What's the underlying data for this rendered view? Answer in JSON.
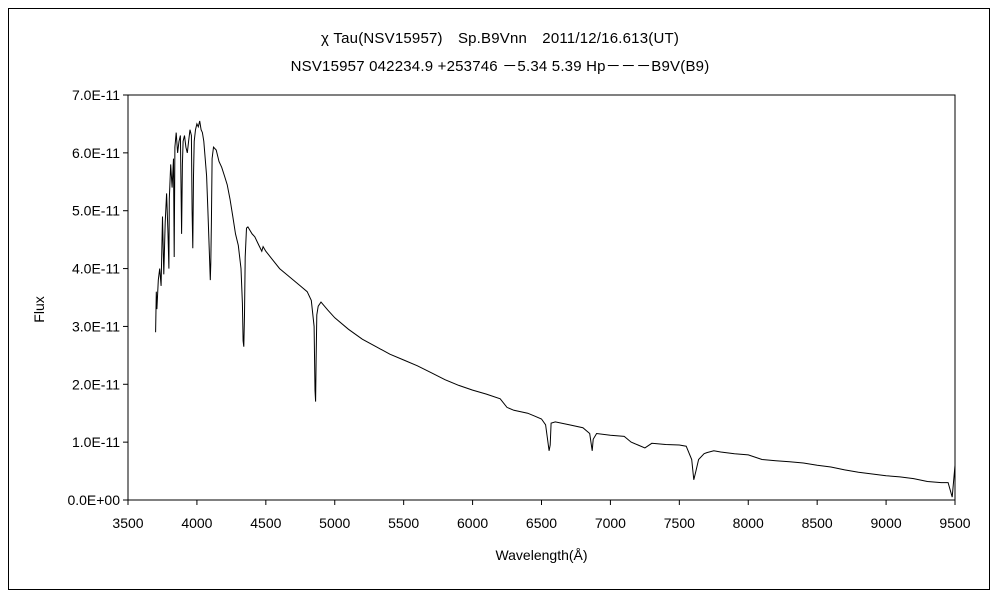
{
  "chart_data": {
    "type": "line",
    "title": "χ Tau(NSV15957)　Sp.B9Vnn　2011/12/16.613(UT)",
    "subtitle": "NSV15957 042234.9 +253746 －5.34 5.39 Hp－－－B9V(B9)",
    "xlabel": "Wavelength(Å)",
    "ylabel": "Flux",
    "xlim": [
      3500,
      9500
    ],
    "ylim": [
      0,
      7e-11
    ],
    "grid": false,
    "legend": "none",
    "x_ticks": [
      "3500",
      "4000",
      "4500",
      "5000",
      "5500",
      "6000",
      "6500",
      "7000",
      "7500",
      "8000",
      "8500",
      "9000",
      "9500"
    ],
    "y_ticks": [
      "0.0E+00",
      "1.0E-11",
      "2.0E-11",
      "3.0E-11",
      "4.0E-11",
      "5.0E-11",
      "6.0E-11",
      "7.0E-11"
    ],
    "series": [
      {
        "color": "#000000",
        "x": [
          3700,
          3705,
          3710,
          3720,
          3730,
          3740,
          3750,
          3760,
          3770,
          3780,
          3790,
          3797,
          3800,
          3810,
          3820,
          3830,
          3835,
          3840,
          3850,
          3860,
          3870,
          3880,
          3889,
          3895,
          3900,
          3910,
          3920,
          3930,
          3940,
          3950,
          3960,
          3965,
          3970,
          3975,
          3980,
          3990,
          4000,
          4010,
          4020,
          4030,
          4040,
          4050,
          4060,
          4070,
          4080,
          4090,
          4097,
          4101,
          4105,
          4110,
          4120,
          4140,
          4160,
          4180,
          4200,
          4220,
          4240,
          4260,
          4280,
          4300,
          4320,
          4330,
          4335,
          4340,
          4345,
          4350,
          4360,
          4370,
          4380,
          4400,
          4420,
          4450,
          4471,
          4480,
          4500,
          4550,
          4600,
          4650,
          4700,
          4750,
          4800,
          4830,
          4850,
          4857,
          4861,
          4865,
          4870,
          4880,
          4900,
          4950,
          5000,
          5100,
          5200,
          5300,
          5400,
          5500,
          5600,
          5700,
          5800,
          5900,
          6000,
          6100,
          6200,
          6250,
          6300,
          6400,
          6450,
          6500,
          6530,
          6555,
          6563,
          6570,
          6600,
          6700,
          6800,
          6850,
          6868,
          6875,
          6900,
          7000,
          7100,
          7150,
          7200,
          7250,
          7300,
          7400,
          7500,
          7550,
          7590,
          7605,
          7620,
          7640,
          7680,
          7700,
          7750,
          7800,
          7900,
          8000,
          8100,
          8200,
          8300,
          8400,
          8500,
          8600,
          8700,
          8800,
          8900,
          9000,
          9100,
          9200,
          9300,
          9400,
          9450,
          9480,
          9500
        ],
        "values": [
          2.9e-11,
          3.6e-11,
          3.3e-11,
          3.8e-11,
          4e-11,
          3.7e-11,
          4.9e-11,
          3.9e-11,
          4.8e-11,
          5.3e-11,
          4.6e-11,
          4e-11,
          5.2e-11,
          5.8e-11,
          5.4e-11,
          5.9e-11,
          4.2e-11,
          6.1e-11,
          6.35e-11,
          6e-11,
          6.2e-11,
          6.3e-11,
          4.6e-11,
          5.8e-11,
          6.2e-11,
          6.3e-11,
          6.1e-11,
          6e-11,
          6.2e-11,
          6.4e-11,
          6.3e-11,
          5e-11,
          4.35e-11,
          5.6e-11,
          6.2e-11,
          6.4e-11,
          6.5e-11,
          6.45e-11,
          6.55e-11,
          6.4e-11,
          6.35e-11,
          6.2e-11,
          5.9e-11,
          5.6e-11,
          5e-11,
          4.3e-11,
          3.8e-11,
          4.1e-11,
          4.8e-11,
          5.9e-11,
          6.1e-11,
          6.05e-11,
          5.85e-11,
          5.75e-11,
          5.6e-11,
          5.45e-11,
          5.2e-11,
          4.9e-11,
          4.6e-11,
          4.4e-11,
          4e-11,
          3.4e-11,
          2.75e-11,
          2.65e-11,
          3.2e-11,
          4.2e-11,
          4.7e-11,
          4.72e-11,
          4.68e-11,
          4.6e-11,
          4.55e-11,
          4.4e-11,
          4.3e-11,
          4.38e-11,
          4.3e-11,
          4.15e-11,
          4e-11,
          3.9e-11,
          3.8e-11,
          3.7e-11,
          3.6e-11,
          3.45e-11,
          3e-11,
          1.9e-11,
          1.7e-11,
          2.4e-11,
          3.2e-11,
          3.35e-11,
          3.42e-11,
          3.28e-11,
          3.15e-11,
          2.95e-11,
          2.78e-11,
          2.65e-11,
          2.52e-11,
          2.42e-11,
          2.32e-11,
          2.2e-11,
          2.08e-11,
          1.98e-11,
          1.9e-11,
          1.83e-11,
          1.75e-11,
          1.6e-11,
          1.55e-11,
          1.5e-11,
          1.45e-11,
          1.4e-11,
          1.3e-11,
          8.5e-12,
          9.5e-12,
          1.33e-11,
          1.35e-11,
          1.3e-11,
          1.25e-11,
          1.15e-11,
          8.5e-12,
          1.05e-11,
          1.15e-11,
          1.12e-11,
          1.1e-11,
          1e-11,
          9.5e-12,
          9e-12,
          9.8e-12,
          9.6e-12,
          9.5e-12,
          9.3e-12,
          7e-12,
          3.5e-12,
          5e-12,
          7e-12,
          8e-12,
          8.2e-12,
          8.5e-12,
          8.3e-12,
          8e-12,
          7.8e-12,
          7e-12,
          6.8e-12,
          6.6e-12,
          6.4e-12,
          6e-12,
          5.7e-12,
          5.2e-12,
          4.8e-12,
          4.5e-12,
          4.2e-12,
          4e-12,
          3.7e-12,
          3.2e-12,
          3e-12,
          3e-12,
          5e-13,
          6e-12
        ]
      }
    ]
  }
}
